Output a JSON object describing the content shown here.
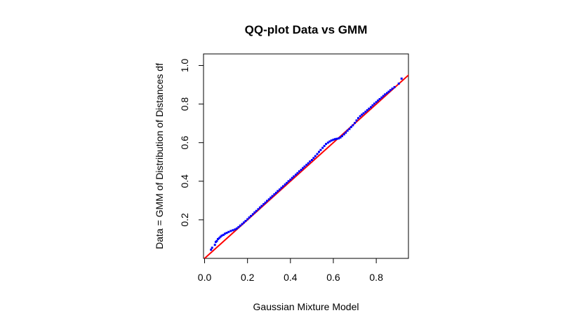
{
  "chart_data": {
    "type": "scatter",
    "title": "QQ-plot Data vs GMM",
    "xlabel": "Gaussian Mixture Model",
    "ylabel": "Data = GMM of Distribution of Distances df",
    "xlim": [
      -0.005,
      0.95
    ],
    "ylim": [
      0.0,
      1.06
    ],
    "xticks": [
      "0.0",
      "0.2",
      "0.4",
      "0.6",
      "0.8"
    ],
    "yticks": [
      "0.2",
      "0.4",
      "0.6",
      "0.8",
      "1.0"
    ],
    "grid": false,
    "series": [
      {
        "role": "points",
        "color": "#0000ff",
        "points": [
          [
            0.03,
            0.045
          ],
          [
            0.035,
            0.055
          ],
          [
            0.048,
            0.07
          ],
          [
            0.052,
            0.085
          ],
          [
            0.057,
            0.09
          ],
          [
            0.062,
            0.1
          ],
          [
            0.068,
            0.105
          ],
          [
            0.074,
            0.112
          ],
          [
            0.08,
            0.118
          ],
          [
            0.088,
            0.122
          ],
          [
            0.095,
            0.128
          ],
          [
            0.103,
            0.132
          ],
          [
            0.112,
            0.137
          ],
          [
            0.122,
            0.142
          ],
          [
            0.132,
            0.146
          ],
          [
            0.142,
            0.15
          ],
          [
            0.15,
            0.155
          ],
          [
            0.158,
            0.162
          ],
          [
            0.166,
            0.17
          ],
          [
            0.175,
            0.178
          ],
          [
            0.183,
            0.186
          ],
          [
            0.191,
            0.194
          ],
          [
            0.2,
            0.203
          ],
          [
            0.208,
            0.212
          ],
          [
            0.216,
            0.22
          ],
          [
            0.225,
            0.229
          ],
          [
            0.233,
            0.238
          ],
          [
            0.241,
            0.246
          ],
          [
            0.25,
            0.255
          ],
          [
            0.258,
            0.264
          ],
          [
            0.266,
            0.272
          ],
          [
            0.275,
            0.281
          ],
          [
            0.283,
            0.289
          ],
          [
            0.291,
            0.298
          ],
          [
            0.3,
            0.306
          ],
          [
            0.308,
            0.315
          ],
          [
            0.316,
            0.323
          ],
          [
            0.325,
            0.332
          ],
          [
            0.333,
            0.34
          ],
          [
            0.341,
            0.349
          ],
          [
            0.35,
            0.357
          ],
          [
            0.358,
            0.366
          ],
          [
            0.366,
            0.374
          ],
          [
            0.375,
            0.383
          ],
          [
            0.383,
            0.391
          ],
          [
            0.391,
            0.4
          ],
          [
            0.4,
            0.408
          ],
          [
            0.408,
            0.417
          ],
          [
            0.416,
            0.425
          ],
          [
            0.425,
            0.434
          ],
          [
            0.433,
            0.442
          ],
          [
            0.441,
            0.451
          ],
          [
            0.45,
            0.459
          ],
          [
            0.458,
            0.468
          ],
          [
            0.466,
            0.476
          ],
          [
            0.475,
            0.485
          ],
          [
            0.483,
            0.493
          ],
          [
            0.491,
            0.502
          ],
          [
            0.5,
            0.51
          ],
          [
            0.508,
            0.52
          ],
          [
            0.516,
            0.53
          ],
          [
            0.525,
            0.541
          ],
          [
            0.533,
            0.552
          ],
          [
            0.541,
            0.562
          ],
          [
            0.55,
            0.573
          ],
          [
            0.558,
            0.583
          ],
          [
            0.566,
            0.593
          ],
          [
            0.575,
            0.6
          ],
          [
            0.583,
            0.606
          ],
          [
            0.591,
            0.611
          ],
          [
            0.6,
            0.615
          ],
          [
            0.608,
            0.618
          ],
          [
            0.616,
            0.62
          ],
          [
            0.625,
            0.622
          ],
          [
            0.633,
            0.627
          ],
          [
            0.641,
            0.634
          ],
          [
            0.65,
            0.643
          ],
          [
            0.658,
            0.652
          ],
          [
            0.666,
            0.662
          ],
          [
            0.675,
            0.671
          ],
          [
            0.683,
            0.681
          ],
          [
            0.691,
            0.69
          ],
          [
            0.7,
            0.702
          ],
          [
            0.708,
            0.715
          ],
          [
            0.716,
            0.727
          ],
          [
            0.725,
            0.737
          ],
          [
            0.733,
            0.745
          ],
          [
            0.741,
            0.752
          ],
          [
            0.75,
            0.76
          ],
          [
            0.758,
            0.768
          ],
          [
            0.766,
            0.776
          ],
          [
            0.775,
            0.784
          ],
          [
            0.783,
            0.793
          ],
          [
            0.791,
            0.802
          ],
          [
            0.8,
            0.81
          ],
          [
            0.808,
            0.818
          ],
          [
            0.816,
            0.826
          ],
          [
            0.825,
            0.834
          ],
          [
            0.833,
            0.842
          ],
          [
            0.841,
            0.85
          ],
          [
            0.85,
            0.857
          ],
          [
            0.858,
            0.864
          ],
          [
            0.866,
            0.872
          ],
          [
            0.875,
            0.88
          ],
          [
            0.885,
            0.888
          ],
          [
            0.905,
            0.906
          ],
          [
            0.918,
            0.932
          ]
        ]
      },
      {
        "role": "reference-line",
        "color": "#ff0000",
        "line": [
          [
            -0.01,
            -0.01
          ],
          [
            0.96,
            0.96
          ]
        ]
      }
    ]
  }
}
